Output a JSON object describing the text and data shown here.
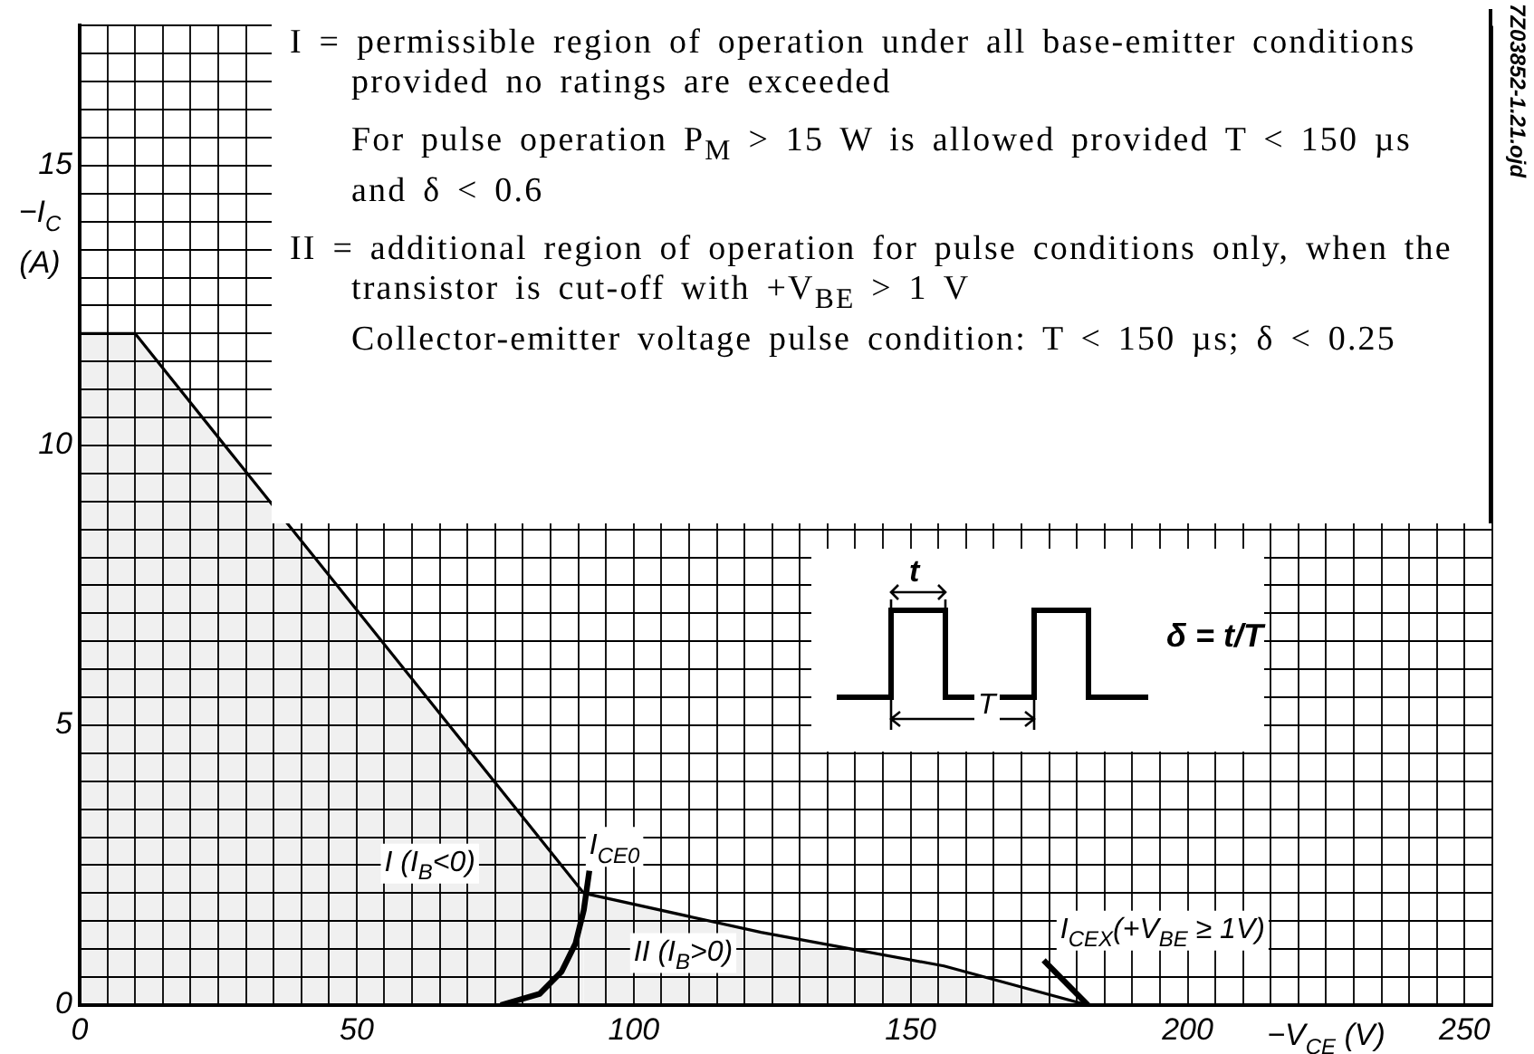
{
  "chart_data": {
    "type": "line",
    "xlabel": "−V$_{CE}$ (V)",
    "ylabel": "−I$_{C}$\n(A)",
    "xlim": [
      0,
      255
    ],
    "ylim": [
      0,
      17.5
    ],
    "xticks": [
      0,
      {
        "value": 5,
        "label": null
      },
      {
        "value": 10,
        "label": null
      },
      {
        "value": 15,
        "label": null
      },
      {
        "value": 20,
        "label": null
      },
      {
        "value": 25,
        "label": null
      },
      {
        "value": 30,
        "label": null
      },
      {
        "value": 35,
        "label": null
      },
      {
        "value": 40,
        "label": null
      },
      {
        "value": 45,
        "label": null
      },
      50,
      {
        "value": 55,
        "label": null
      },
      {
        "value": 60,
        "label": null
      },
      {
        "value": 65,
        "label": null
      },
      {
        "value": 70,
        "label": null
      },
      {
        "value": 75,
        "label": null
      },
      {
        "value": 80,
        "label": null
      },
      {
        "value": 85,
        "label": null
      },
      {
        "value": 90,
        "label": null
      },
      {
        "value": 95,
        "label": null
      },
      100,
      {
        "value": 105,
        "label": null
      },
      {
        "value": 110,
        "label": null
      },
      {
        "value": 115,
        "label": null
      },
      {
        "value": 120,
        "label": null
      },
      {
        "value": 125,
        "label": null
      },
      {
        "value": 130,
        "label": null
      },
      {
        "value": 135,
        "label": null
      },
      {
        "value": 140,
        "label": null
      },
      {
        "value": 145,
        "label": null
      },
      150,
      {
        "value": 155,
        "label": null
      },
      {
        "value": 160,
        "label": null
      },
      {
        "value": 165,
        "label": null
      },
      {
        "value": 170,
        "label": null
      },
      {
        "value": 175,
        "label": null
      },
      {
        "value": 180,
        "label": null
      },
      {
        "value": 185,
        "label": null
      },
      {
        "value": 190,
        "label": null
      },
      {
        "value": 195,
        "label": null
      },
      200,
      {
        "value": 205,
        "label": null
      },
      {
        "value": 210,
        "label": null
      },
      {
        "value": 215,
        "label": null
      },
      {
        "value": 220,
        "label": null
      },
      {
        "value": 225,
        "label": null
      },
      {
        "value": 230,
        "label": null
      },
      {
        "value": 235,
        "label": null
      },
      {
        "value": 240,
        "label": null
      },
      {
        "value": 245,
        "label": null
      },
      250,
      {
        "value": 255,
        "label": null
      }
    ],
    "yticks": [
      0,
      {
        "value": 0.5,
        "label": null
      },
      {
        "value": 1,
        "label": null
      },
      {
        "value": 1.5,
        "label": null
      },
      {
        "value": 2,
        "label": null
      },
      {
        "value": 2.5,
        "label": null
      },
      {
        "value": 3,
        "label": null
      },
      {
        "value": 3.5,
        "label": null
      },
      {
        "value": 4,
        "label": null
      },
      {
        "value": 4.5,
        "label": null
      },
      5,
      {
        "value": 5.5,
        "label": null
      },
      {
        "value": 6,
        "label": null
      },
      {
        "value": 6.5,
        "label": null
      },
      {
        "value": 7,
        "label": null
      },
      {
        "value": 7.5,
        "label": null
      },
      {
        "value": 8,
        "label": null
      },
      {
        "value": 8.5,
        "label": null
      },
      {
        "value": 9,
        "label": null
      },
      {
        "value": 9.5,
        "label": null
      },
      10,
      {
        "value": 10.5,
        "label": null
      },
      {
        "value": 11,
        "label": null
      },
      {
        "value": 11.5,
        "label": null
      },
      {
        "value": 12,
        "label": null
      },
      {
        "value": 12.5,
        "label": null
      },
      {
        "value": 13,
        "label": null
      },
      {
        "value": 13.5,
        "label": null
      },
      {
        "value": 14,
        "label": null
      },
      {
        "value": 14.5,
        "label": null
      },
      15,
      {
        "value": 15.5,
        "label": null
      },
      {
        "value": 16,
        "label": null
      },
      {
        "value": 16.5,
        "label": null
      },
      {
        "value": 17,
        "label": null
      },
      {
        "value": 17.5,
        "label": null
      }
    ],
    "grid": true,
    "legend": false,
    "marker": "none",
    "line_style": "solid",
    "series": [
      {
        "type": "area",
        "color": "#000000",
        "x": [
          0,
          10,
          91
        ],
        "values": [
          12,
          12,
          2
        ]
      },
      {
        "type": "area",
        "color": "#000000",
        "x": [
          91,
          123,
          156,
          182
        ],
        "values": [
          2,
          1.3,
          0.7,
          0
        ]
      },
      {
        "type": "line",
        "color": "#000000",
        "x": [
          76,
          83,
          87,
          89.5,
          91,
          92
        ],
        "values": [
          0,
          0.2,
          0.6,
          1.1,
          1.7,
          2.4
        ]
      },
      {
        "type": "line",
        "color": "#000000",
        "x": [
          174,
          182
        ],
        "values": [
          0.8,
          0
        ]
      }
    ],
    "annotations": [
      "I = permissible region of operation under all base-emitter conditions provided no ratings are exceeded",
      "For pulse operation P$_{M}$ > 15 W is allowed provided T < 150 µs and δ < 0.6",
      "II = additional region of operation for pulse conditions only, when the transistor is cut-off with +V$_{BE}$ > 1 V",
      "Collector-emitter voltage pulse condition: T < 150 µs; δ < 0.25",
      "t",
      "T",
      "δ = t/T",
      "7Z03852-1.21.ojd",
      "I (I$_{B}$<0)",
      "II (I$_{B}$>0)",
      "I$_{CE0}$",
      "I$_{CEX}$(+V$_{BE}$ ≥ 1V)"
    ]
  }
}
